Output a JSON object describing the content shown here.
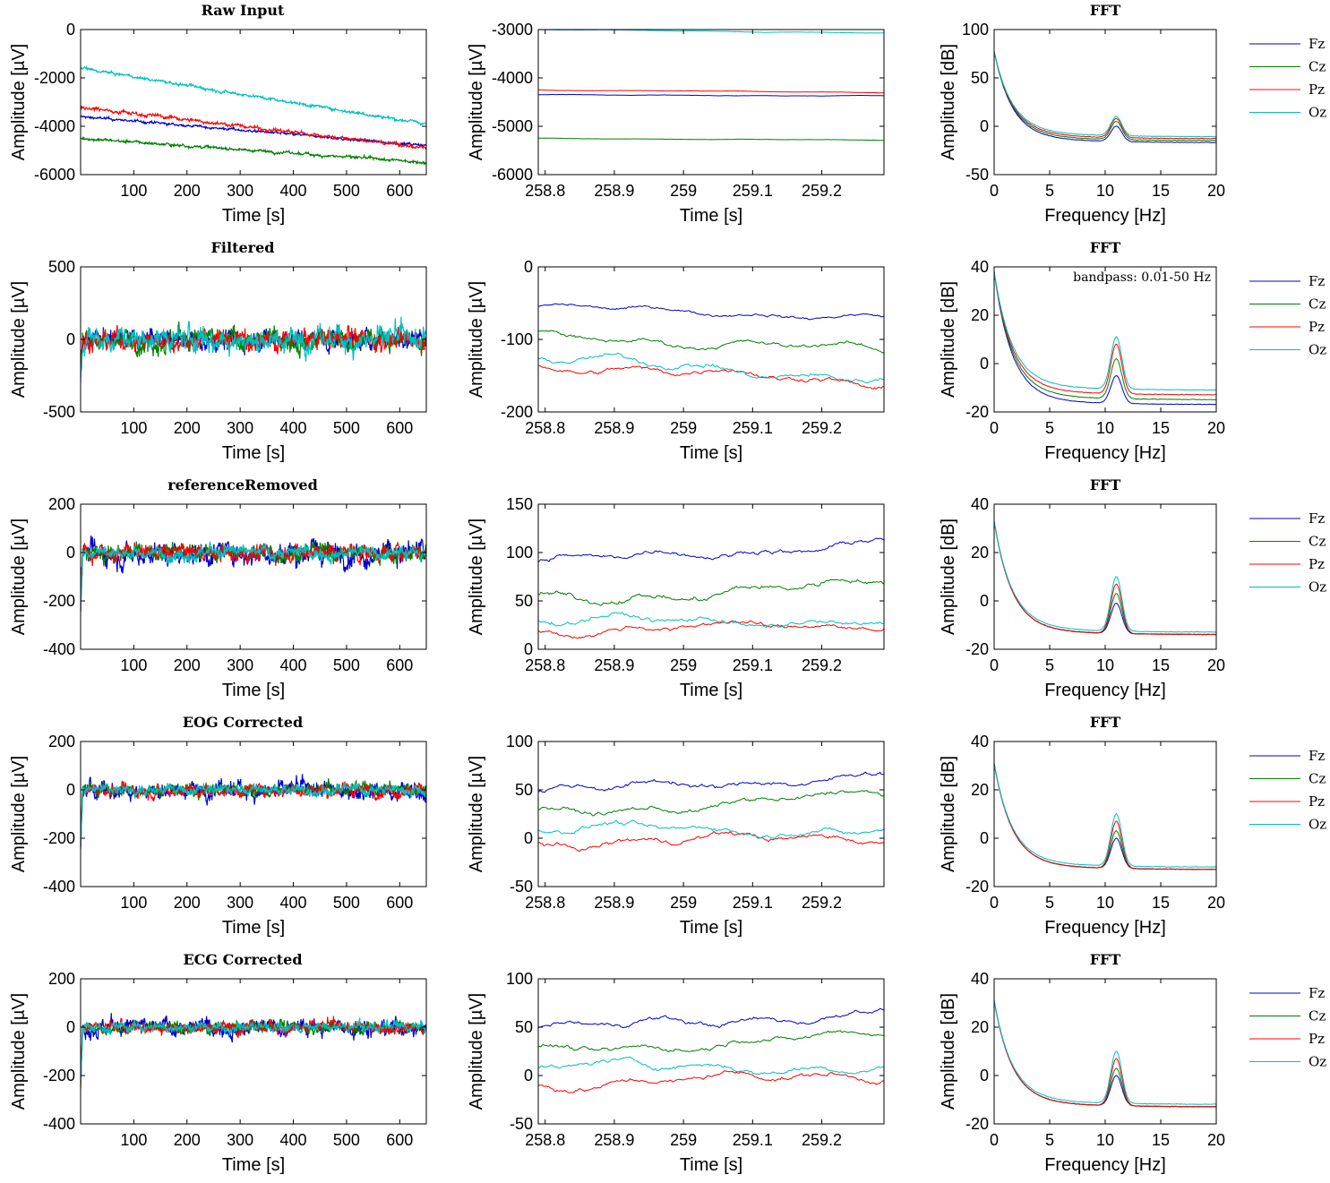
{
  "channels": [
    {
      "name": "Fz",
      "color": "#0000cc"
    },
    {
      "name": "Cz",
      "color": "#007f00"
    },
    {
      "name": "Pz",
      "color": "#ff0000"
    },
    {
      "name": "Oz",
      "color": "#00bfbf"
    }
  ],
  "chart_data": [
    {
      "row": 0,
      "col": 0,
      "type": "line",
      "title": "Raw Input",
      "xlabel": "Time [s]",
      "ylabel": "Amplitude [µV]",
      "xlim": [
        0,
        650
      ],
      "ylim": [
        -6000,
        0
      ],
      "xticks": [
        100,
        200,
        300,
        400,
        500,
        600
      ],
      "yticks": [
        0,
        -2000,
        -4000,
        -6000
      ],
      "mode": "long",
      "series_profile": [
        {
          "name": "Fz",
          "start": -3600,
          "end": -4800,
          "noise": 60
        },
        {
          "name": "Cz",
          "start": -4500,
          "end": -5500,
          "noise": 70
        },
        {
          "name": "Pz",
          "start": -3200,
          "end": -4900,
          "noise": 90
        },
        {
          "name": "Oz",
          "start": -1600,
          "end": -3900,
          "noise": 70
        }
      ]
    },
    {
      "row": 0,
      "col": 1,
      "type": "line",
      "title": "",
      "xlabel": "Time [s]",
      "ylabel": "Amplitude [µV]",
      "xlim": [
        258.79,
        259.29
      ],
      "ylim": [
        -6000,
        -3000
      ],
      "xticks": [
        258.8,
        258.9,
        259,
        259.1,
        259.2
      ],
      "yticks": [
        -3000,
        -4000,
        -5000,
        -6000
      ],
      "mode": "zoom",
      "series_profile": [
        {
          "name": "Fz",
          "start": -4350,
          "end": -4370,
          "noise": 8
        },
        {
          "name": "Cz",
          "start": -5250,
          "end": -5290,
          "noise": 8
        },
        {
          "name": "Pz",
          "start": -4250,
          "end": -4300,
          "noise": 8
        },
        {
          "name": "Oz",
          "start": -3000,
          "end": -3070,
          "noise": 8
        }
      ]
    },
    {
      "row": 0,
      "col": 2,
      "type": "line",
      "title": "FFT",
      "xlabel": "Frequency [Hz]",
      "ylabel": "Amplitude [dB]",
      "xlim": [
        0,
        20
      ],
      "ylim": [
        -50,
        100
      ],
      "xticks": [
        0,
        5,
        10,
        15,
        20
      ],
      "yticks": [
        100,
        50,
        0,
        -50
      ],
      "mode": "fft",
      "series_profile": [
        {
          "name": "Fz",
          "start": 70,
          "end": -17,
          "peak": 0
        },
        {
          "name": "Cz",
          "start": 70,
          "end": -15,
          "peak": 5
        },
        {
          "name": "Pz",
          "start": 70,
          "end": -13,
          "peak": 8
        },
        {
          "name": "Oz",
          "start": 70,
          "end": -11,
          "peak": 10
        }
      ]
    },
    {
      "row": 1,
      "col": 0,
      "type": "line",
      "title": "Filtered",
      "xlabel": "Time [s]",
      "ylabel": "Amplitude [µV]",
      "xlim": [
        0,
        650
      ],
      "ylim": [
        -500,
        500
      ],
      "xticks": [
        100,
        200,
        300,
        400,
        500,
        600
      ],
      "yticks": [
        500,
        0,
        -500
      ],
      "mode": "long",
      "series_profile": [
        {
          "name": "Fz",
          "start": 0,
          "end": 0,
          "noise": 80
        },
        {
          "name": "Cz",
          "start": 0,
          "end": 0,
          "noise": 80
        },
        {
          "name": "Pz",
          "start": 0,
          "end": 0,
          "noise": 80
        },
        {
          "name": "Oz",
          "start": 0,
          "end": 0,
          "noise": 95
        }
      ]
    },
    {
      "row": 1,
      "col": 1,
      "type": "line",
      "title": "",
      "xlabel": "Time [s]",
      "ylabel": "Amplitude [µV]",
      "xlim": [
        258.79,
        259.29
      ],
      "ylim": [
        -200,
        0
      ],
      "xticks": [
        258.8,
        258.9,
        259,
        259.1,
        259.2
      ],
      "yticks": [
        0,
        -100,
        -200
      ],
      "mode": "zoom",
      "series_profile": [
        {
          "name": "Fz",
          "start": -55,
          "end": -70,
          "noise": 5
        },
        {
          "name": "Cz",
          "start": -95,
          "end": -115,
          "noise": 7
        },
        {
          "name": "Pz",
          "start": -135,
          "end": -160,
          "noise": 8
        },
        {
          "name": "Oz",
          "start": -125,
          "end": -155,
          "noise": 8
        }
      ]
    },
    {
      "row": 1,
      "col": 2,
      "type": "line",
      "title": "FFT",
      "xlabel": "Frequency [Hz]",
      "ylabel": "Amplitude [dB]",
      "xlim": [
        0,
        20
      ],
      "ylim": [
        -20,
        40
      ],
      "xticks": [
        0,
        5,
        10,
        15,
        20
      ],
      "yticks": [
        40,
        20,
        0,
        -20
      ],
      "annotation": "bandpass: 0.01-50 Hz",
      "mode": "fft",
      "series_profile": [
        {
          "name": "Fz",
          "start": 35,
          "end": -17,
          "peak": -5
        },
        {
          "name": "Cz",
          "start": 35,
          "end": -15,
          "peak": 2
        },
        {
          "name": "Pz",
          "start": 35,
          "end": -13,
          "peak": 8
        },
        {
          "name": "Oz",
          "start": 35,
          "end": -11,
          "peak": 11
        }
      ]
    },
    {
      "row": 2,
      "col": 0,
      "type": "line",
      "title": "referenceRemoved",
      "xlabel": "Time [s]",
      "ylabel": "Amplitude [µV]",
      "xlim": [
        0,
        650
      ],
      "ylim": [
        -400,
        200
      ],
      "xticks": [
        100,
        200,
        300,
        400,
        500,
        600
      ],
      "yticks": [
        200,
        0,
        -200,
        -400
      ],
      "mode": "long",
      "series_profile": [
        {
          "name": "Fz",
          "start": 0,
          "end": 0,
          "noise": 55
        },
        {
          "name": "Cz",
          "start": 0,
          "end": 0,
          "noise": 40
        },
        {
          "name": "Pz",
          "start": 0,
          "end": 0,
          "noise": 40
        },
        {
          "name": "Oz",
          "start": 0,
          "end": 0,
          "noise": 30
        }
      ]
    },
    {
      "row": 2,
      "col": 1,
      "type": "line",
      "title": "",
      "xlabel": "Time [s]",
      "ylabel": "Amplitude [µV]",
      "xlim": [
        258.79,
        259.29
      ],
      "ylim": [
        0,
        150
      ],
      "xticks": [
        258.8,
        258.9,
        259,
        259.1,
        259.2
      ],
      "yticks": [
        150,
        100,
        50,
        0
      ],
      "mode": "zoom",
      "series_profile": [
        {
          "name": "Fz",
          "start": 90,
          "end": 110,
          "noise": 6
        },
        {
          "name": "Cz",
          "start": 50,
          "end": 68,
          "noise": 7
        },
        {
          "name": "Pz",
          "start": 20,
          "end": 25,
          "noise": 6
        },
        {
          "name": "Oz",
          "start": 30,
          "end": 28,
          "noise": 6
        }
      ]
    },
    {
      "row": 2,
      "col": 2,
      "type": "line",
      "title": "FFT",
      "xlabel": "Frequency [Hz]",
      "ylabel": "Amplitude [dB]",
      "xlim": [
        0,
        20
      ],
      "ylim": [
        -20,
        40
      ],
      "xticks": [
        0,
        5,
        10,
        15,
        20
      ],
      "yticks": [
        40,
        20,
        0,
        -20
      ],
      "mode": "fft",
      "series_profile": [
        {
          "name": "Fz",
          "start": 30,
          "end": -14,
          "peak": -1
        },
        {
          "name": "Cz",
          "start": 30,
          "end": -14,
          "peak": 3
        },
        {
          "name": "Pz",
          "start": 30,
          "end": -14,
          "peak": 7
        },
        {
          "name": "Oz",
          "start": 30,
          "end": -13,
          "peak": 10
        }
      ]
    },
    {
      "row": 3,
      "col": 0,
      "type": "line",
      "title": "EOG Corrected",
      "xlabel": "Time [s]",
      "ylabel": "Amplitude [µV]",
      "xlim": [
        0,
        650
      ],
      "ylim": [
        -400,
        200
      ],
      "xticks": [
        100,
        200,
        300,
        400,
        500,
        600
      ],
      "yticks": [
        200,
        0,
        -200,
        -400
      ],
      "mode": "long",
      "series_profile": [
        {
          "name": "Fz",
          "start": 0,
          "end": 0,
          "noise": 40
        },
        {
          "name": "Cz",
          "start": 0,
          "end": 0,
          "noise": 30
        },
        {
          "name": "Pz",
          "start": 0,
          "end": 0,
          "noise": 30
        },
        {
          "name": "Oz",
          "start": 0,
          "end": 0,
          "noise": 25
        }
      ]
    },
    {
      "row": 3,
      "col": 1,
      "type": "line",
      "title": "",
      "xlabel": "Time [s]",
      "ylabel": "Amplitude [µV]",
      "xlim": [
        258.79,
        259.29
      ],
      "ylim": [
        -50,
        100
      ],
      "xticks": [
        258.8,
        258.9,
        259,
        259.1,
        259.2
      ],
      "yticks": [
        100,
        50,
        0,
        -50
      ],
      "mode": "zoom",
      "series_profile": [
        {
          "name": "Fz",
          "start": 48,
          "end": 65,
          "noise": 6
        },
        {
          "name": "Cz",
          "start": 25,
          "end": 45,
          "noise": 6
        },
        {
          "name": "Pz",
          "start": -5,
          "end": 2,
          "noise": 6
        },
        {
          "name": "Oz",
          "start": 10,
          "end": 8,
          "noise": 6
        }
      ]
    },
    {
      "row": 3,
      "col": 2,
      "type": "line",
      "title": "FFT",
      "xlabel": "Frequency [Hz]",
      "ylabel": "Amplitude [dB]",
      "xlim": [
        0,
        20
      ],
      "ylim": [
        -20,
        40
      ],
      "xticks": [
        0,
        5,
        10,
        15,
        20
      ],
      "yticks": [
        40,
        20,
        0,
        -20
      ],
      "mode": "fft",
      "series_profile": [
        {
          "name": "Fz",
          "start": 28,
          "end": -13,
          "peak": 0
        },
        {
          "name": "Cz",
          "start": 28,
          "end": -13,
          "peak": 3
        },
        {
          "name": "Pz",
          "start": 28,
          "end": -13,
          "peak": 7
        },
        {
          "name": "Oz",
          "start": 28,
          "end": -12,
          "peak": 10
        }
      ]
    },
    {
      "row": 4,
      "col": 0,
      "type": "line",
      "title": "ECG Corrected",
      "xlabel": "Time [s]",
      "ylabel": "Amplitude [µV]",
      "xlim": [
        0,
        650
      ],
      "ylim": [
        -400,
        200
      ],
      "xticks": [
        100,
        200,
        300,
        400,
        500,
        600
      ],
      "yticks": [
        200,
        0,
        -200,
        -400
      ],
      "mode": "long",
      "series_profile": [
        {
          "name": "Fz",
          "start": 0,
          "end": 0,
          "noise": 38
        },
        {
          "name": "Cz",
          "start": 0,
          "end": 0,
          "noise": 28
        },
        {
          "name": "Pz",
          "start": 0,
          "end": 0,
          "noise": 28
        },
        {
          "name": "Oz",
          "start": 0,
          "end": 0,
          "noise": 24
        }
      ]
    },
    {
      "row": 4,
      "col": 1,
      "type": "line",
      "title": "",
      "xlabel": "Time [s]",
      "ylabel": "Amplitude [µV]",
      "xlim": [
        258.79,
        259.29
      ],
      "ylim": [
        -50,
        100
      ],
      "xticks": [
        258.8,
        258.9,
        259,
        259.1,
        259.2
      ],
      "yticks": [
        100,
        50,
        0,
        -50
      ],
      "mode": "zoom",
      "series_profile": [
        {
          "name": "Fz",
          "start": 48,
          "end": 65,
          "noise": 6
        },
        {
          "name": "Cz",
          "start": 25,
          "end": 42,
          "noise": 6
        },
        {
          "name": "Pz",
          "start": -10,
          "end": 2,
          "noise": 6
        },
        {
          "name": "Oz",
          "start": 10,
          "end": 8,
          "noise": 6
        }
      ]
    },
    {
      "row": 4,
      "col": 2,
      "type": "line",
      "title": "FFT",
      "xlabel": "Frequency [Hz]",
      "ylabel": "Amplitude [dB]",
      "xlim": [
        0,
        20
      ],
      "ylim": [
        -20,
        40
      ],
      "xticks": [
        0,
        5,
        10,
        15,
        20
      ],
      "yticks": [
        40,
        20,
        0,
        -20
      ],
      "mode": "fft",
      "series_profile": [
        {
          "name": "Fz",
          "start": 28,
          "end": -13,
          "peak": 0
        },
        {
          "name": "Cz",
          "start": 28,
          "end": -13,
          "peak": 3
        },
        {
          "name": "Pz",
          "start": 28,
          "end": -13,
          "peak": 7
        },
        {
          "name": "Oz",
          "start": 28,
          "end": -12,
          "peak": 10
        }
      ]
    }
  ]
}
